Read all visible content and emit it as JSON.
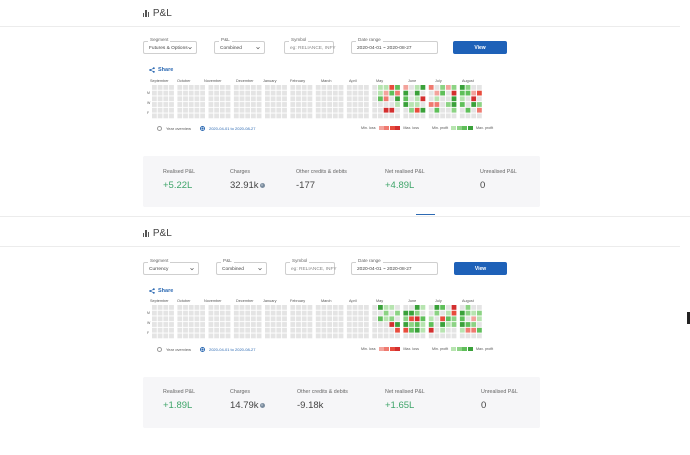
{
  "colors": {
    "accent": "#1e61b8",
    "positive": "#3fa56a",
    "loss": "#e53935",
    "profit": "#43a047",
    "empty": "#e4e4e4"
  },
  "panels": [
    {
      "title": "P&L",
      "segment": {
        "label": "Segment",
        "value": "Futures & Options"
      },
      "pnl": {
        "label": "P&L",
        "value": "Combined"
      },
      "symbol": {
        "label": "Symbol",
        "placeholder": "eg: RELIANCE, INFY"
      },
      "date_range": {
        "label": "Date range",
        "value": "2020-04-01 ~ 2020-08-27"
      },
      "view_label": "View",
      "share_label": "Share",
      "months": [
        "September",
        "October",
        "November",
        "December",
        "January",
        "February",
        "March",
        "April",
        "May",
        "June",
        "July",
        "August"
      ],
      "days": [
        "M",
        "W",
        "F"
      ],
      "year_overview": "Year overview",
      "range_option": "2020-04-01 to 2020-08-27",
      "legend_loss_min": "Min. loss",
      "legend_loss_max": "Max. loss",
      "legend_profit_min": "Min. profit",
      "legend_profit_max": "Max. profit",
      "stats": {
        "realised": {
          "label": "Realised P&L",
          "value": "+5.22L"
        },
        "charges": {
          "label": "Charges",
          "value": "32.91k"
        },
        "other": {
          "label": "Other credits & debits",
          "value": "-177"
        },
        "net": {
          "label": "Net realised P&L",
          "value": "+4.89L"
        },
        "unrealised": {
          "label": "Unrealised P&L",
          "value": "0"
        }
      }
    },
    {
      "title": "P&L",
      "segment": {
        "label": "Segment",
        "value": "Currency"
      },
      "pnl": {
        "label": "P&L",
        "value": "Combined"
      },
      "symbol": {
        "label": "Symbol",
        "placeholder": "eg: RELIANCE, INFY"
      },
      "date_range": {
        "label": "Date range",
        "value": "2020-04-01 ~ 2020-08-27"
      },
      "view_label": "View",
      "share_label": "Share",
      "months": [
        "September",
        "October",
        "November",
        "December",
        "January",
        "February",
        "March",
        "April",
        "May",
        "June",
        "July",
        "August"
      ],
      "days": [
        "M",
        "W",
        "F"
      ],
      "year_overview": "Year overview",
      "range_option": "2020-04-01 to 2020-08-27",
      "legend_loss_min": "Min. loss",
      "legend_loss_max": "Max. loss",
      "legend_profit_min": "Min. profit",
      "legend_profit_max": "Max. profit",
      "stats": {
        "realised": {
          "label": "Realised P&L",
          "value": "+1.89L"
        },
        "charges": {
          "label": "Charges",
          "value": "14.79k"
        },
        "other": {
          "label": "Other credits & debits",
          "value": "-9.18k"
        },
        "net": {
          "label": "Net realised P&L",
          "value": "+1.65L"
        },
        "unrealised": {
          "label": "Unrealised P&L",
          "value": "0"
        }
      }
    }
  ]
}
